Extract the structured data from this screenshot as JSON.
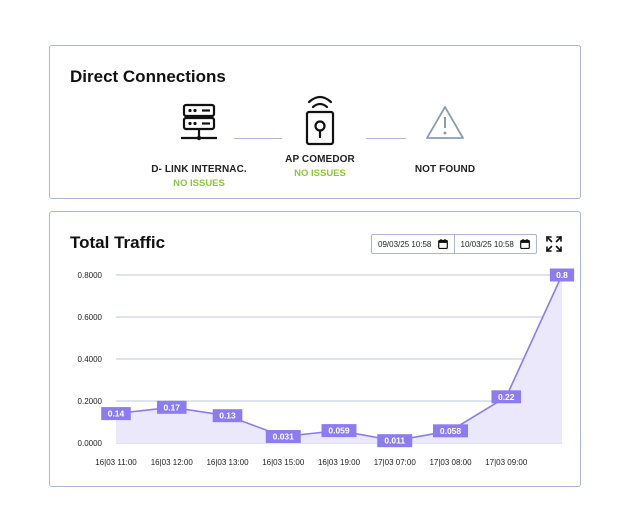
{
  "connections": {
    "title": "Direct Connections",
    "devices": [
      {
        "name": "D- LINK INTERNAC.",
        "status": "NO ISSUES",
        "icon": "server-icon"
      },
      {
        "name": "AP COMEDOR",
        "status": "NO ISSUES",
        "icon": "wifi-lock-icon"
      },
      {
        "name": "NOT FOUND",
        "status": "",
        "icon": "warning-icon"
      }
    ],
    "status_color": "#8cc63f"
  },
  "traffic": {
    "title": "Total Traffic",
    "date_from": "09/03/25 10:58",
    "date_to": "10/03/25 10:58"
  },
  "chart_data": {
    "type": "area",
    "x": [
      "16|03 11:00",
      "16|03 12:00",
      "16|03 13:00",
      "16|03 15:00",
      "16|03 19:00",
      "17|03 07:00",
      "17|03 08:00",
      "17|03 09:00",
      ""
    ],
    "x_tick_labels": [
      "16|03 11:00",
      "16|03 12:00",
      "16|03 13:00",
      "16|03 15:00",
      "16|03 19:00",
      "17|03 07:00",
      "17|03 08:00",
      "17|03 09:00"
    ],
    "series": [
      {
        "values": [
          0.14,
          0.17,
          0.13,
          0.031,
          0.059,
          0.011,
          0.058,
          0.22,
          0.8
        ],
        "data_labels": [
          "0.14",
          "0.17",
          "0.13",
          "0.031",
          "0.059",
          "0.011",
          "0.058",
          "0.22",
          "0.8"
        ]
      }
    ],
    "y_ticks": [
      "0.0000",
      "0.2000",
      "0.4000",
      "0.6000",
      "0.8000"
    ],
    "ylim": [
      0,
      0.8
    ],
    "grid": true,
    "line_color": "#8b7cf0",
    "fill_color": "#ebe8fc",
    "label_bg_color": "#8b7cf0",
    "grid_color": "#a9b7d3"
  }
}
